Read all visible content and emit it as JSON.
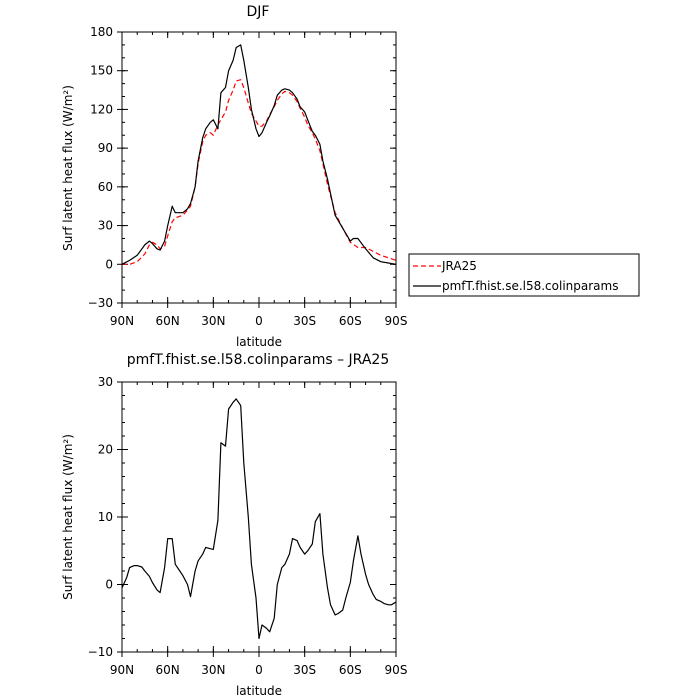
{
  "chart_data": [
    {
      "type": "line",
      "title": "DJF",
      "xlabel": "latitude",
      "ylabel": "Surf latent heat flux (W/m²)",
      "xlim": [
        90,
        -90
      ],
      "ylim": [
        -30,
        180
      ],
      "yticks": [
        -30,
        0,
        30,
        60,
        90,
        120,
        150,
        180
      ],
      "xticks": [
        90,
        60,
        30,
        0,
        -30,
        -60,
        -90
      ],
      "xtick_labels": [
        "90N",
        "60N",
        "30N",
        "0",
        "30S",
        "60S",
        "90S"
      ],
      "legend": "right",
      "grid": false,
      "series": [
        {
          "name": "JRA25",
          "color": "#ff0000",
          "dash": "dashed",
          "x": [
            90,
            85,
            80,
            75,
            72,
            70,
            67,
            65,
            62,
            60,
            57,
            55,
            50,
            47,
            45,
            42,
            40,
            37,
            35,
            32,
            30,
            27,
            25,
            22,
            20,
            17,
            15,
            12,
            10,
            7,
            5,
            2,
            0,
            -2,
            -5,
            -7,
            -10,
            -12,
            -15,
            -17,
            -20,
            -22,
            -25,
            -27,
            -30,
            -32,
            -35,
            -37,
            -40,
            -42,
            -45,
            -50,
            -55,
            -60,
            -65,
            -70,
            -75,
            -80,
            -85,
            -90
          ],
          "y": [
            0,
            0,
            2,
            8,
            15,
            17,
            15,
            12,
            14,
            22,
            33,
            36,
            38,
            42,
            45,
            60,
            78,
            95,
            100,
            102,
            100,
            108,
            112,
            118,
            127,
            135,
            142,
            143,
            137,
            125,
            117,
            111,
            107,
            107,
            111,
            116,
            122,
            127,
            132,
            134,
            133,
            131,
            126,
            121,
            114,
            108,
            102,
            97,
            88,
            78,
            62,
            40,
            28,
            17,
            13,
            13,
            10,
            7,
            5,
            3
          ]
        },
        {
          "name": "pmfT.fhist.se.l58.colinparams",
          "color": "#000000",
          "dash": "solid",
          "x": [
            90,
            85,
            80,
            75,
            72,
            70,
            67,
            65,
            62,
            60,
            57,
            55,
            50,
            47,
            45,
            42,
            40,
            37,
            35,
            32,
            30,
            27,
            25,
            22,
            20,
            17,
            15,
            12,
            10,
            7,
            5,
            2,
            0,
            -2,
            -5,
            -7,
            -10,
            -12,
            -15,
            -17,
            -20,
            -22,
            -25,
            -27,
            -30,
            -32,
            -35,
            -37,
            -40,
            -42,
            -45,
            -50,
            -55,
            -60,
            -62,
            -65,
            -70,
            -75,
            -80,
            -85,
            -90
          ],
          "y": [
            0,
            3,
            7,
            15,
            18,
            16,
            12,
            11,
            18,
            30,
            45,
            40,
            40,
            43,
            47,
            60,
            80,
            98,
            105,
            110,
            112,
            105,
            133,
            137,
            150,
            158,
            168,
            170,
            158,
            137,
            120,
            105,
            99,
            102,
            110,
            115,
            123,
            131,
            135,
            136,
            135,
            133,
            128,
            122,
            118,
            112,
            103,
            100,
            93,
            80,
            66,
            38,
            28,
            18,
            20,
            20,
            12,
            5,
            2,
            1,
            0
          ]
        }
      ]
    },
    {
      "type": "line",
      "title": "pmfT.fhist.se.l58.colinparams – JRA25",
      "xlabel": "latitude",
      "ylabel": "Surf latent heat flux (W/m²)",
      "xlim": [
        90,
        -90
      ],
      "ylim": [
        -10,
        30
      ],
      "yticks": [
        -10,
        0,
        10,
        20,
        30
      ],
      "xticks": [
        90,
        60,
        30,
        0,
        -30,
        -60,
        -90
      ],
      "xtick_labels": [
        "90N",
        "60N",
        "30N",
        "0",
        "30S",
        "60S",
        "90S"
      ],
      "grid": false,
      "series": [
        {
          "color": "#000000",
          "dash": "solid",
          "x": [
            90,
            87,
            85,
            82,
            80,
            77,
            75,
            72,
            70,
            67,
            65,
            62,
            60,
            57,
            55,
            52,
            50,
            47,
            45,
            42,
            40,
            37,
            35,
            32,
            30,
            27,
            25,
            22,
            20,
            17,
            15,
            12,
            10,
            7,
            5,
            2,
            0,
            -2,
            -5,
            -7,
            -10,
            -12,
            -15,
            -17,
            -20,
            -22,
            -25,
            -27,
            -30,
            -32,
            -35,
            -37,
            -40,
            -42,
            -45,
            -47,
            -50,
            -52,
            -55,
            -57,
            -60,
            -62,
            -65,
            -67,
            -70,
            -72,
            -75,
            -77,
            -80,
            -82,
            -85,
            -87,
            -90
          ],
          "y": [
            -0.5,
            1,
            2.5,
            2.8,
            2.8,
            2.6,
            2,
            1.2,
            0.3,
            -0.8,
            -1.2,
            2.5,
            6.8,
            6.8,
            3,
            2,
            1.3,
            0,
            -1.8,
            2,
            3.5,
            4.5,
            5.5,
            5.3,
            5.2,
            9.5,
            21,
            20.5,
            26,
            27,
            27.5,
            26.5,
            18,
            10,
            3,
            -2,
            -8,
            -6,
            -6.5,
            -7,
            -5,
            0,
            2.5,
            3,
            4.5,
            6.8,
            6.5,
            5.5,
            4.5,
            5,
            6,
            9.3,
            10.5,
            4.5,
            -0.5,
            -3,
            -4.5,
            -4.3,
            -3.8,
            -2,
            0.3,
            3.5,
            7.2,
            4.5,
            1.5,
            0,
            -1.5,
            -2.2,
            -2.5,
            -2.8,
            -3,
            -3,
            -2.6
          ]
        }
      ]
    }
  ]
}
